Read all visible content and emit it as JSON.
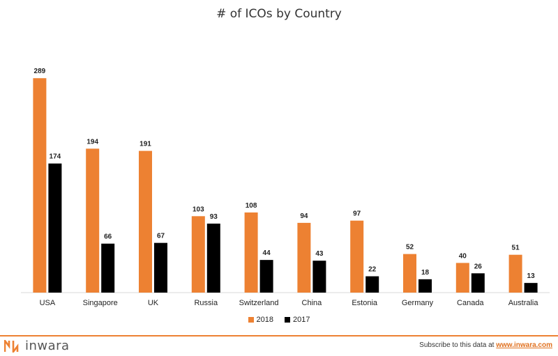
{
  "chart_data": {
    "type": "bar",
    "title": "# of ICOs by Country",
    "categories": [
      "USA",
      "Singapore",
      "UK",
      "Russia",
      "Switzerland",
      "China",
      "Estonia",
      "Germany",
      "Canada",
      "Australia"
    ],
    "series": [
      {
        "name": "2018",
        "values": [
          289,
          194,
          191,
          103,
          108,
          94,
          97,
          52,
          40,
          51
        ],
        "color": "#ED8132"
      },
      {
        "name": "2017",
        "values": [
          174,
          66,
          67,
          93,
          44,
          43,
          22,
          18,
          26,
          13
        ],
        "color": "#000000"
      }
    ],
    "xlabel": "",
    "ylabel": "",
    "ylim": [
      0,
      300
    ],
    "grid": false,
    "data_labels": true,
    "legend_position": "bottom"
  },
  "legend": {
    "items": [
      {
        "label": "2018",
        "color": "#ED8132"
      },
      {
        "label": "2017",
        "color": "#000000"
      }
    ]
  },
  "footer": {
    "brand": "inwara",
    "brand_icon": "inwara-logo-icon",
    "subscribe_text": "Subscribe to this data at",
    "subscribe_link": "www.inwara.com",
    "accent_color": "#ED8132"
  }
}
